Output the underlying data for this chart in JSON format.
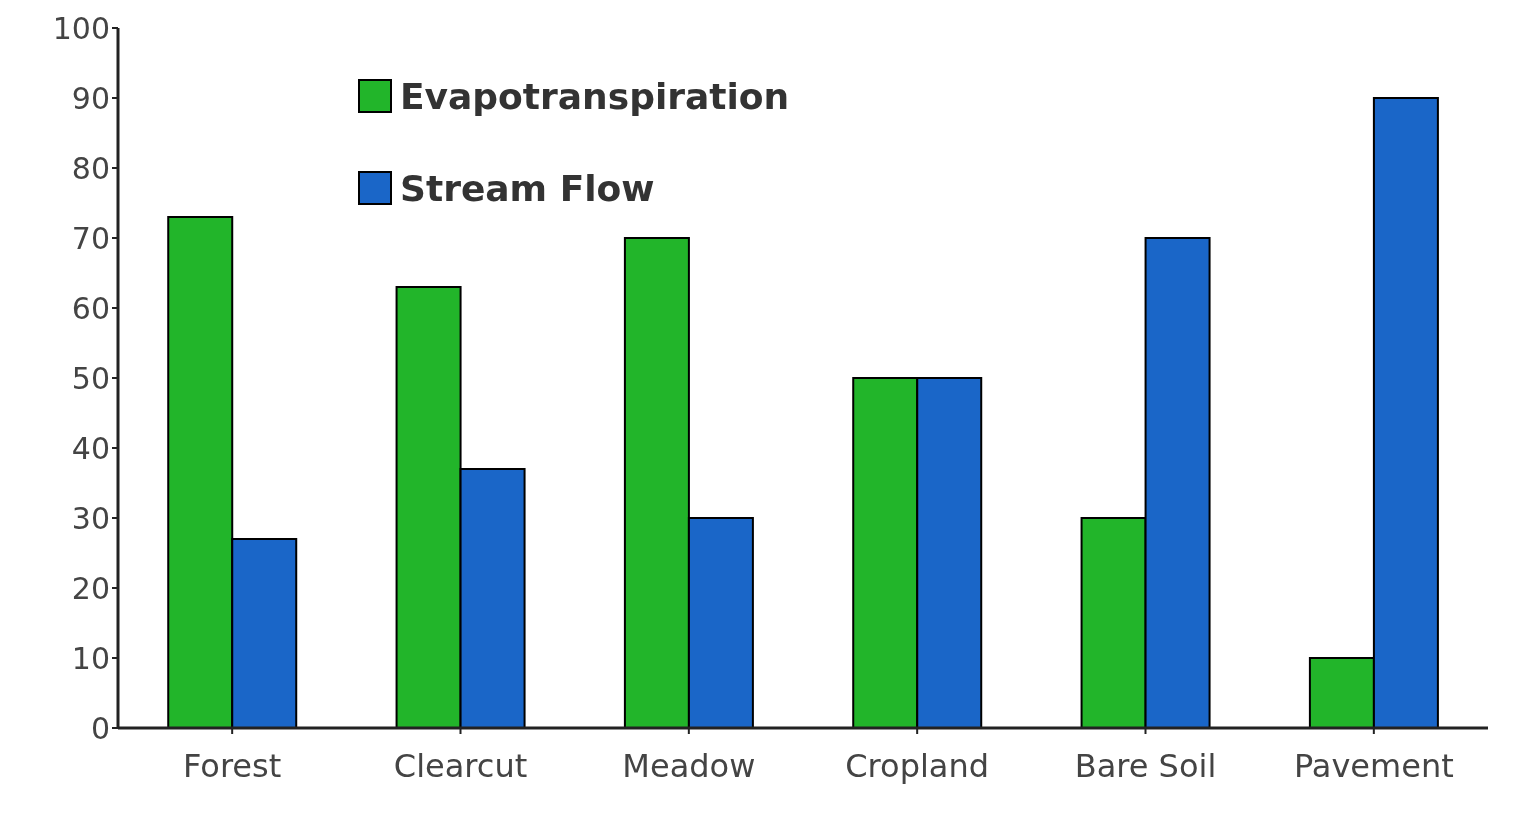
{
  "chart_data": {
    "type": "bar",
    "categories": [
      "Forest",
      "Clearcut",
      "Meadow",
      "Cropland",
      "Bare Soil",
      "Pavement"
    ],
    "series": [
      {
        "name": "Evapotranspiration",
        "color": "#22b52a",
        "values": [
          73,
          63,
          70,
          50,
          30,
          10
        ]
      },
      {
        "name": "Stream Flow",
        "color": "#1a66c8",
        "values": [
          27,
          37,
          30,
          50,
          70,
          90
        ]
      }
    ],
    "ylim": [
      0,
      100
    ],
    "yticks": [
      0,
      10,
      20,
      30,
      40,
      50,
      60,
      70,
      80,
      90,
      100
    ],
    "grid": false,
    "legend": "top left"
  }
}
